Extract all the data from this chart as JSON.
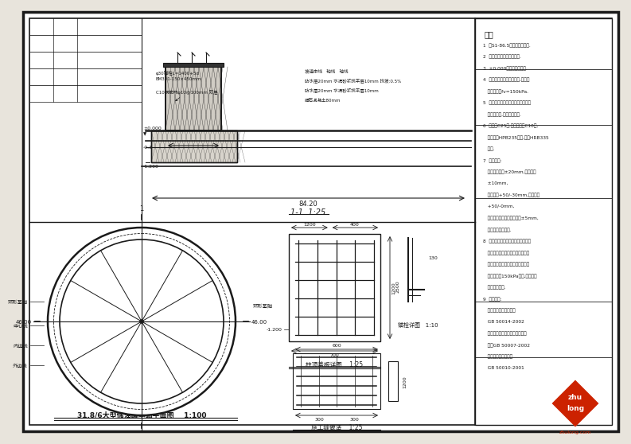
{
  "bg_color": "#e8e4dc",
  "paper_color": "#ffffff",
  "line_color": "#1a1a1a",
  "dark_color": "#000000",
  "notes_header": "说明",
  "plan_label": "31.8/6大型储油罐基础平面图",
  "plan_scale": "1:100",
  "section_label": "1-1",
  "section_scale": "1:25",
  "detail1_label": "柱顶盖板详图",
  "detail1_scale": "1:25",
  "detail2_label": "施工缝做法",
  "detail2_scale": "1:25",
  "anchor_label": "锚栓详图",
  "anchor_scale": "1:10",
  "dim_84": "84.20",
  "note_lines": [
    "说明",
    "1  按S1-86.5钢结构规范施工.",
    "2  焊接材料按母材匹配选用.",
    "3  ±0.000相当于绝对标高.",
    "4  地基处理采用砂卵石换填,地基承",
    "   载力特征值fv=150kPa.",
    "5  土建图纸应与管工、暖通、设备图",
    "   纸密切配合,预埋管道施工.",
    "6  混凝土C25级,垫层混凝土C10级,",
    "   主筋采用HPB235钢筋,箍筋HRB335",
    "   钢筋.",
    "7  质量标准:",
    "   基础轴线偏差±20mm,基础标高",
    "   ±10mm,",
    "   柱距偏差+50/-30mm,跨距偏差",
    "   +50/-0mm,",
    "   各部分尺寸偏差其允许偏差±5mm,",
    "   满足现行施工规范.",
    "8  地基处理需要经过甲方验槽，地基",
    "   处理完毕后，需要四方会审，且经",
    "   甲方认可后方能进行基础施工，地",
    "   基承载力按150kPa设计,否则由设",
    "   计方另行处理.",
    "9  执行规范:",
    "   建筑地基基础设计规范",
    "   GB 50014-2002",
    "   建筑地基基础工程施工质量验收",
    "   规范GB 50007-2002",
    "   混凝土结构设计规范",
    "   GB 50010-2001"
  ]
}
